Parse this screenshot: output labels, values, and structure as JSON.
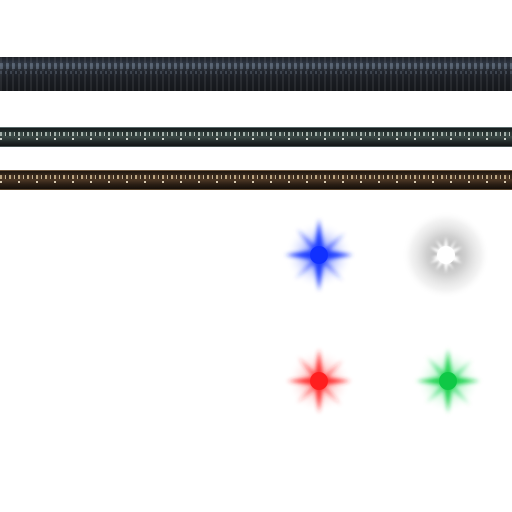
{
  "atlas": {
    "sprites": [
      {
        "kind": "building-strip",
        "variant": "dark"
      },
      {
        "kind": "building-strip",
        "variant": "teal-lit"
      },
      {
        "kind": "building-strip",
        "variant": "brown-lit"
      },
      {
        "kind": "light-flare",
        "color": "#1f3cff",
        "shape": "star"
      },
      {
        "kind": "light-flare",
        "color": "#ffffff",
        "shape": "starburst-glow"
      },
      {
        "kind": "light-flare",
        "color": "#ff2a2a",
        "shape": "star"
      },
      {
        "kind": "light-flare",
        "color": "#12d14a",
        "shape": "star"
      }
    ]
  },
  "colors": {
    "background": "#ffffff",
    "blue": "#1f3cff",
    "white": "#ffffff",
    "red": "#ff2a2a",
    "green": "#12d14a",
    "halo": "#bdbdbd"
  }
}
